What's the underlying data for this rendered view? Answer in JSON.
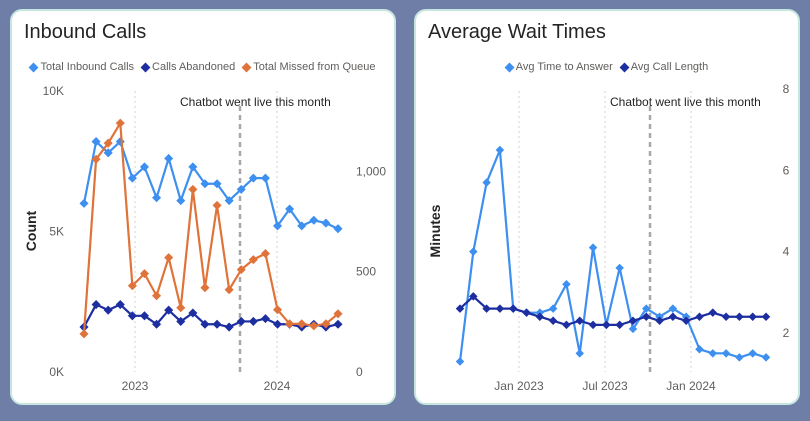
{
  "chart_data": [
    {
      "type": "line",
      "title": "Inbound Calls",
      "xlabel": "",
      "ylabel": "Count",
      "ylim": [
        0,
        10000
      ],
      "y2lim": [
        0,
        1400
      ],
      "x_ticks": [
        "2023",
        "2024"
      ],
      "y_ticks": [
        "0K",
        "5K",
        "10K"
      ],
      "y2_ticks": [
        "0",
        "500",
        "1,000"
      ],
      "annotation": "Chatbot went live this month",
      "legend_position": "top",
      "series": [
        {
          "name": "Total Inbound Calls",
          "color": "#3d8ff0",
          "axis": "left",
          "values": [
            6000,
            8200,
            7800,
            8200,
            6900,
            7300,
            6200,
            7600,
            6100,
            7300,
            6700,
            6700,
            6100,
            6500,
            6900,
            6900,
            5200,
            5800,
            5200,
            5400,
            5300,
            5100
          ]
        },
        {
          "name": "Calls Abandoned",
          "color": "#1d2ea0",
          "axis": "left",
          "values": [
            1600,
            2400,
            2200,
            2400,
            2000,
            2000,
            1700,
            2200,
            1800,
            2100,
            1700,
            1700,
            1600,
            1800,
            1800,
            1900,
            1700,
            1700,
            1600,
            1700,
            1600,
            1700
          ]
        },
        {
          "name": "Total Missed from Queue",
          "color": "#e0733a",
          "axis": "right",
          "values": [
            190,
            1060,
            1140,
            1240,
            430,
            490,
            380,
            570,
            320,
            910,
            420,
            830,
            410,
            510,
            560,
            590,
            310,
            240,
            240,
            230,
            240,
            290
          ]
        }
      ]
    },
    {
      "type": "line",
      "title": "Average Wait Times",
      "xlabel": "",
      "ylabel": "Minutes",
      "y2lim": [
        1,
        8
      ],
      "x_ticks": [
        "Jan 2023",
        "Jul 2023",
        "Jan 2024"
      ],
      "y2_ticks": [
        "2",
        "4",
        "6",
        "8"
      ],
      "annotation": "Chatbot went live this month",
      "legend_position": "top",
      "series": [
        {
          "name": "Avg Time to Answer",
          "color": "#3d8ff0",
          "values": [
            1.3,
            4.0,
            5.7,
            6.5,
            2.6,
            2.5,
            2.5,
            2.6,
            3.2,
            1.5,
            4.1,
            2.2,
            3.6,
            2.1,
            2.6,
            2.4,
            2.6,
            2.4,
            1.6,
            1.5,
            1.5,
            1.4,
            1.5,
            1.4
          ]
        },
        {
          "name": "Avg Call Length",
          "color": "#1d2ea0",
          "values": [
            2.6,
            2.9,
            2.6,
            2.6,
            2.6,
            2.5,
            2.4,
            2.3,
            2.2,
            2.3,
            2.2,
            2.2,
            2.2,
            2.3,
            2.4,
            2.3,
            2.4,
            2.3,
            2.4,
            2.5,
            2.4,
            2.4,
            2.4,
            2.4
          ]
        }
      ]
    }
  ]
}
